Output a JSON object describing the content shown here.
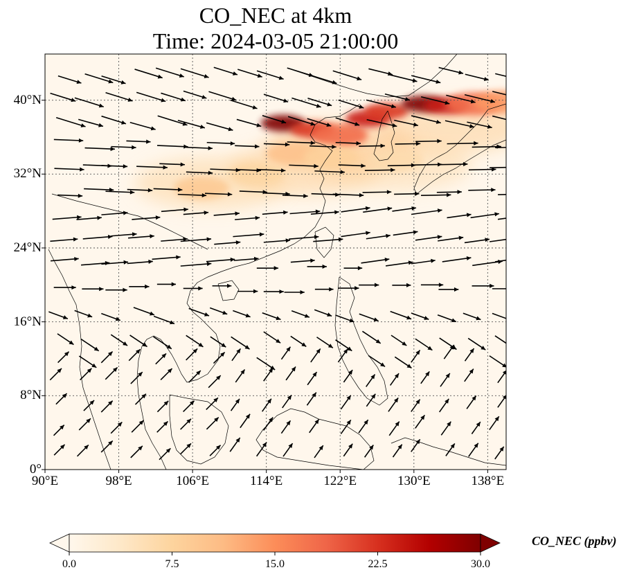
{
  "title": {
    "line1": "CO_NEC at 4km",
    "line2": "Time: 2024-03-05 21:00:00"
  },
  "map": {
    "lon_range": [
      90,
      140
    ],
    "lat_range": [
      0,
      45
    ],
    "lon_ticks": [
      {
        "value": 90,
        "label": "90°E"
      },
      {
        "value": 98,
        "label": "98°E"
      },
      {
        "value": 106,
        "label": "106°E"
      },
      {
        "value": 114,
        "label": "114°E"
      },
      {
        "value": 122,
        "label": "122°E"
      },
      {
        "value": 130,
        "label": "130°E"
      },
      {
        "value": 138,
        "label": "138°E"
      }
    ],
    "lat_ticks": [
      {
        "value": 0,
        "label": "0°"
      },
      {
        "value": 8,
        "label": "8°N"
      },
      {
        "value": 16,
        "label": "16°N"
      },
      {
        "value": 24,
        "label": "24°N"
      },
      {
        "value": 32,
        "label": "32°N"
      },
      {
        "value": 40,
        "label": "40°N"
      }
    ],
    "gridlines": true,
    "field": "CO_NEC",
    "plumes": [
      {
        "lon": 115.8,
        "lat": 37.5,
        "value": 30
      },
      {
        "lon": 119.0,
        "lat": 36.8,
        "value": 22
      },
      {
        "lon": 122.0,
        "lat": 36.2,
        "value": 18
      },
      {
        "lon": 125.0,
        "lat": 38.0,
        "value": 24
      },
      {
        "lon": 127.0,
        "lat": 38.8,
        "value": 22
      },
      {
        "lon": 131.0,
        "lat": 39.6,
        "value": 30
      },
      {
        "lon": 133.5,
        "lat": 39.4,
        "value": 24
      },
      {
        "lon": 136.5,
        "lat": 39.6,
        "value": 18
      },
      {
        "lon": 139.5,
        "lat": 39.8,
        "value": 14
      },
      {
        "lon": 117.0,
        "lat": 34.2,
        "value": 10
      },
      {
        "lon": 121.0,
        "lat": 33.8,
        "value": 8
      },
      {
        "lon": 107.0,
        "lat": 30.5,
        "value": 9
      },
      {
        "lon": 113.0,
        "lat": 32.0,
        "value": 7
      },
      {
        "lon": 128.0,
        "lat": 33.5,
        "value": 6
      }
    ]
  },
  "colorbar": {
    "label": "CO_NEC (ppbv)",
    "min": 0,
    "max": 30,
    "colormap": "OrRd",
    "extend": "both",
    "ticks": [
      {
        "value": 0,
        "label": "0.0"
      },
      {
        "value": 7.5,
        "label": "7.5"
      },
      {
        "value": 15,
        "label": "15.0"
      },
      {
        "value": 22.5,
        "label": "22.5"
      },
      {
        "value": 30,
        "label": "30.0"
      }
    ],
    "colors": [
      "#fff7ec",
      "#fee8c8",
      "#fdd49e",
      "#fdbb84",
      "#fc8d59",
      "#ef6548",
      "#d7301f",
      "#b30000",
      "#7f0000"
    ]
  }
}
